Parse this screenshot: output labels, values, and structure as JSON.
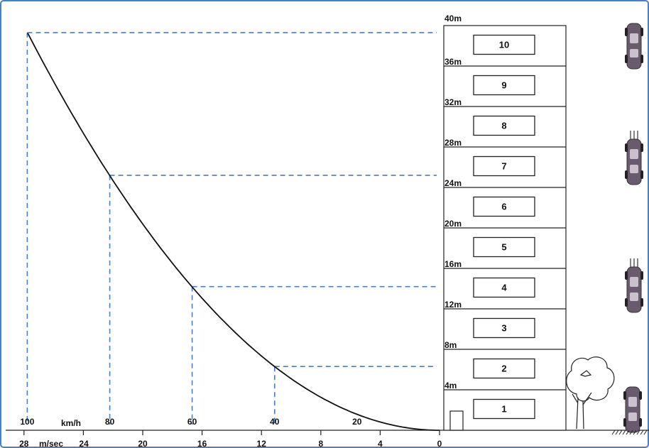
{
  "building": {
    "top_label": "40m",
    "height_labels": [
      "36m",
      "32m",
      "28m",
      "24m",
      "20m",
      "16m",
      "12m",
      "8m",
      "4m"
    ],
    "floors": [
      "1",
      "2",
      "3",
      "4",
      "5",
      "6",
      "7",
      "8",
      "9",
      "10"
    ]
  },
  "axis": {
    "kmh_unit": "km/h",
    "ms_unit": "m/sec",
    "kmh_ticks": [
      {
        "label": "100",
        "ms": 27.78
      },
      {
        "label": "80",
        "ms": 22.22
      },
      {
        "label": "60",
        "ms": 16.67
      },
      {
        "label": "40",
        "ms": 11.11
      },
      {
        "label": "20",
        "ms": 5.56
      }
    ],
    "ms_ticks": [
      {
        "label": "28",
        "ms": 28
      },
      {
        "label": "24",
        "ms": 24
      },
      {
        "label": "20",
        "ms": 20
      },
      {
        "label": "16",
        "ms": 16
      },
      {
        "label": "12",
        "ms": 12
      },
      {
        "label": "8",
        "ms": 8
      },
      {
        "label": "4",
        "ms": 4
      },
      {
        "label": "0",
        "ms": 0
      }
    ]
  },
  "reference_lines": [
    {
      "speed_ms": 27.78,
      "height_m": 39.3
    },
    {
      "speed_ms": 22.22,
      "height_m": 25.2
    },
    {
      "speed_ms": 16.67,
      "height_m": 14.2
    },
    {
      "speed_ms": 11.11,
      "height_m": 6.3
    }
  ],
  "curve": {
    "type": "height = v^2 / (2g)",
    "g": 9.81
  },
  "colors": {
    "frame": "#4a7fc1",
    "dashed": "#4a7fc1",
    "ink": "#111111",
    "car": "#6a5a6e"
  },
  "icons": [
    "falling-car-icon",
    "falling-car-icon",
    "falling-car-icon",
    "ground-car-icon",
    "tree-icon",
    "door-icon"
  ]
}
